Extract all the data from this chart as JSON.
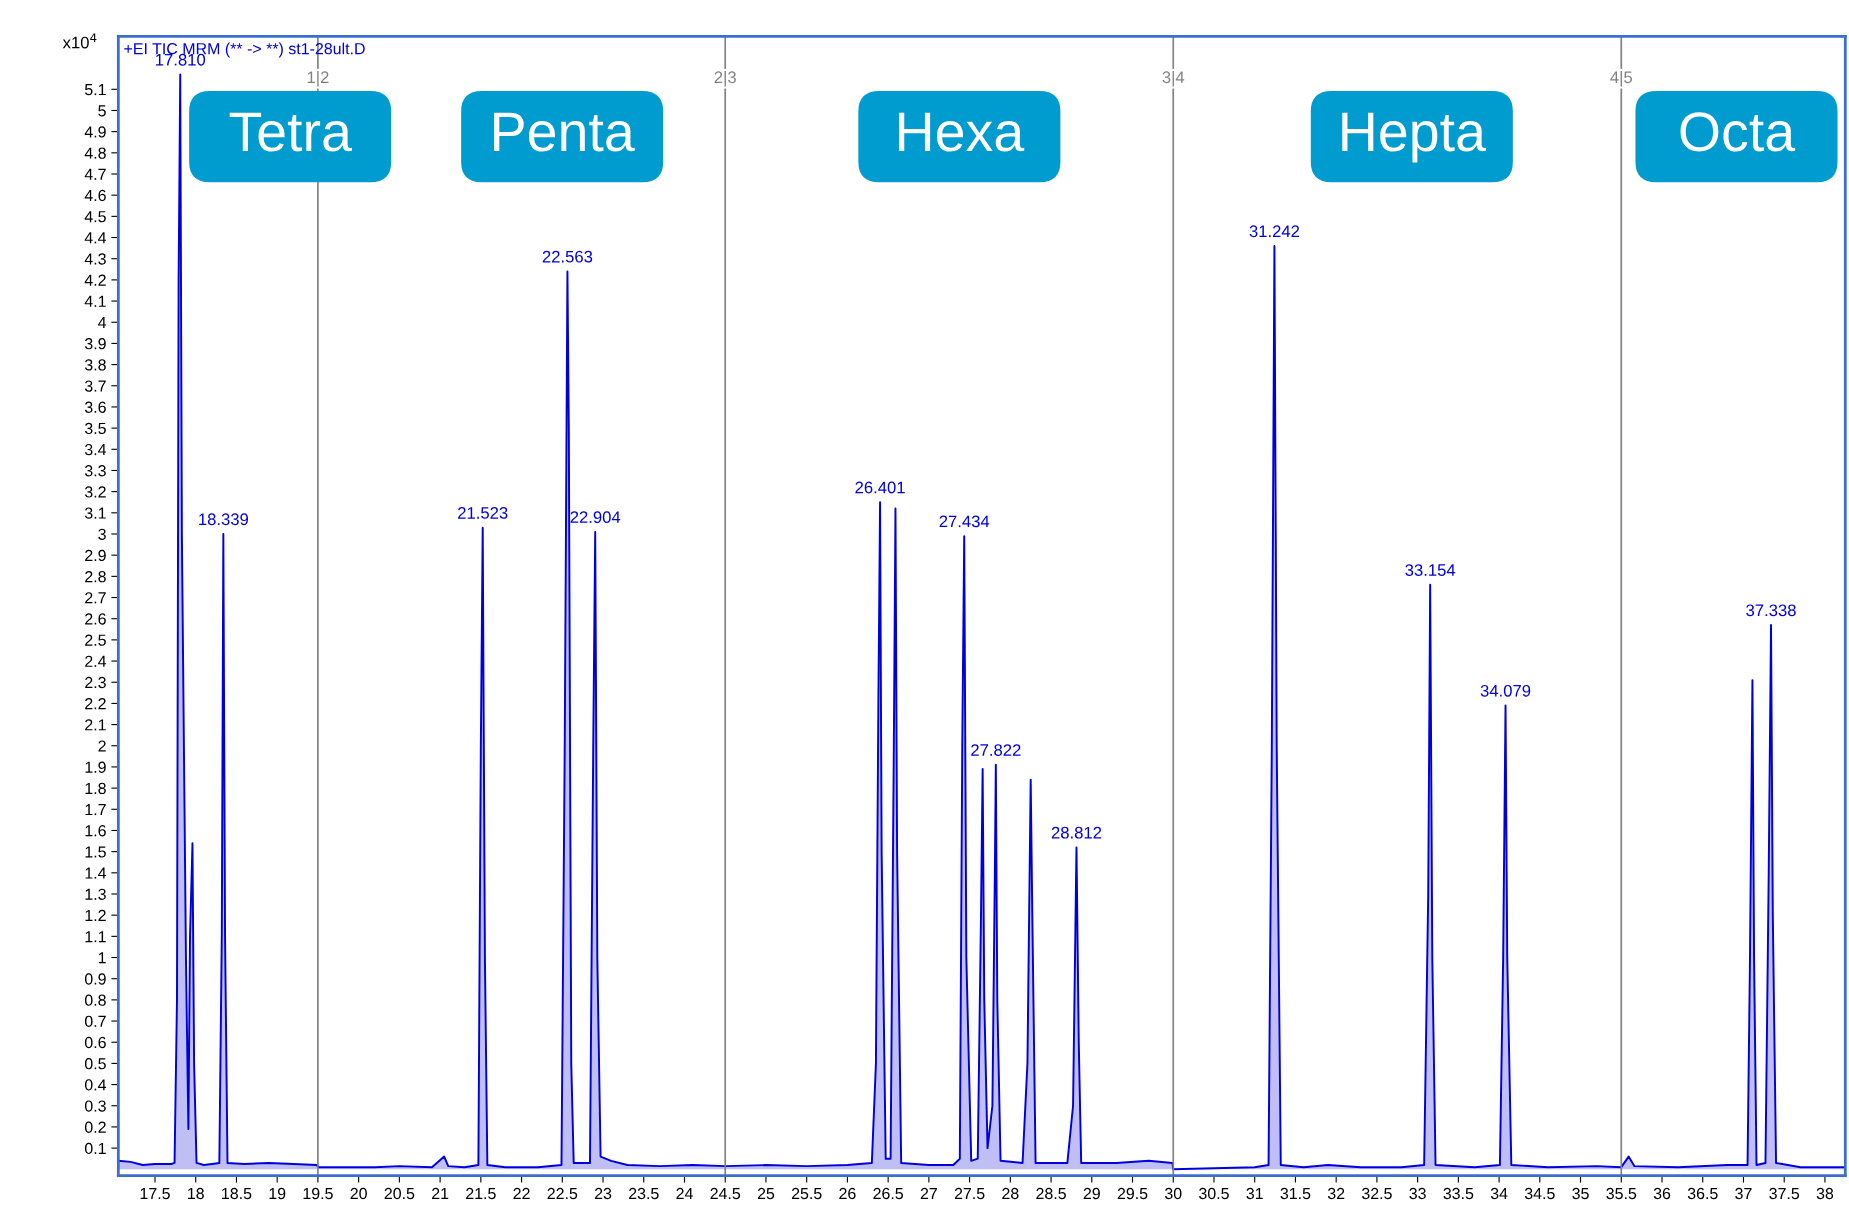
{
  "chart_data": {
    "type": "area",
    "title": "+EI TIC MRM (** -> **) st1-28ult.D",
    "ylabel": "x10$^{4}$",
    "x": [
      17.05,
      17.2,
      17.35,
      17.5,
      17.7,
      17.74,
      17.77,
      17.79,
      17.81,
      17.83,
      17.88,
      17.91,
      17.93,
      17.96,
      17.98,
      18.01,
      18.1,
      18.2,
      18.29,
      18.32,
      18.339,
      18.36,
      18.39,
      18.6,
      18.9,
      19.2,
      19.49,
      19.5,
      19.8,
      20.2,
      20.5,
      20.9,
      21.05,
      21.1,
      21.3,
      21.47,
      21.5,
      21.523,
      21.55,
      21.58,
      21.8,
      22.2,
      22.49,
      22.53,
      22.563,
      22.58,
      22.61,
      22.64,
      22.84,
      22.88,
      22.904,
      22.93,
      22.97,
      23.1,
      23.3,
      23.7,
      24.1,
      24.5,
      25.0,
      25.5,
      26.0,
      26.3,
      26.35,
      26.38,
      26.401,
      26.42,
      26.47,
      26.53,
      26.57,
      26.59,
      26.61,
      26.66,
      27.0,
      27.3,
      27.38,
      27.41,
      27.434,
      27.46,
      27.52,
      27.6,
      27.64,
      27.66,
      27.68,
      27.72,
      27.78,
      27.81,
      27.822,
      27.84,
      27.88,
      28.15,
      28.21,
      28.25,
      28.27,
      28.31,
      28.7,
      28.77,
      28.812,
      28.84,
      28.87,
      29.3,
      29.7,
      29.99,
      30.0,
      30.5,
      31.0,
      31.17,
      31.21,
      31.242,
      31.27,
      31.32,
      31.6,
      31.9,
      32.3,
      32.8,
      33.08,
      33.13,
      33.154,
      33.18,
      33.22,
      33.7,
      34.01,
      34.05,
      34.079,
      34.1,
      34.15,
      34.6,
      35.2,
      35.5,
      35.59,
      35.66,
      36.2,
      36.8,
      37.05,
      37.08,
      37.11,
      37.13,
      37.16,
      37.27,
      37.31,
      37.338,
      37.36,
      37.4,
      37.7,
      38.25
    ],
    "series": [
      {
        "color": "#0000dd",
        "values": [
          0.04,
          0.035,
          0.02,
          0.025,
          0.025,
          0.03,
          0.8,
          4.2,
          5.17,
          3.0,
          1.0,
          0.19,
          1.1,
          1.54,
          0.5,
          0.03,
          0.02,
          0.025,
          0.03,
          1.1,
          3.0,
          1.1,
          0.03,
          0.025,
          0.03,
          0.025,
          0.02,
          0.01,
          0.01,
          0.01,
          0.015,
          0.01,
          0.06,
          0.015,
          0.01,
          0.02,
          2.0,
          3.03,
          1.0,
          0.02,
          0.01,
          0.01,
          0.02,
          2.0,
          4.24,
          3.5,
          0.5,
          0.03,
          0.03,
          2.0,
          3.01,
          1.0,
          0.06,
          0.04,
          0.02,
          0.015,
          0.02,
          0.015,
          0.02,
          0.015,
          0.02,
          0.03,
          0.5,
          2.2,
          3.15,
          1.5,
          0.05,
          0.05,
          2.0,
          3.12,
          1.5,
          0.03,
          0.02,
          0.02,
          0.05,
          2.0,
          2.99,
          1.0,
          0.04,
          0.05,
          1.2,
          1.89,
          0.8,
          0.1,
          0.3,
          1.4,
          1.91,
          0.8,
          0.04,
          0.03,
          0.5,
          1.84,
          1.2,
          0.03,
          0.03,
          0.3,
          1.52,
          0.6,
          0.03,
          0.03,
          0.04,
          0.03,
          0.0,
          0.005,
          0.01,
          0.02,
          2.0,
          4.36,
          2.0,
          0.02,
          0.01,
          0.02,
          0.01,
          0.01,
          0.02,
          1.3,
          2.76,
          1.0,
          0.02,
          0.01,
          0.02,
          1.0,
          2.19,
          1.0,
          0.02,
          0.01,
          0.015,
          0.01,
          0.06,
          0.015,
          0.01,
          0.02,
          0.02,
          1.0,
          2.31,
          1.0,
          0.02,
          0.03,
          1.4,
          2.57,
          1.2,
          0.03,
          0.01,
          0.01
        ]
      }
    ],
    "xlim": [
      17.05,
      38.25
    ],
    "xticks": [
      17.5,
      18,
      18.5,
      19,
      19.5,
      20,
      20.5,
      21,
      21.5,
      22,
      22.5,
      23,
      23.5,
      24,
      24.5,
      25,
      25.5,
      26,
      26.5,
      27,
      27.5,
      28,
      28.5,
      29,
      29.5,
      30,
      30.5,
      31,
      31.5,
      32,
      32.5,
      33,
      33.5,
      34,
      34.5,
      35,
      35.5,
      36,
      36.5,
      37,
      37.5,
      38
    ],
    "ylim": [
      -0.03,
      5.35
    ],
    "yticks": [
      0.1,
      0.2,
      0.3,
      0.4,
      0.5,
      0.6,
      0.7,
      0.8,
      0.9,
      1,
      1.1,
      1.2,
      1.3,
      1.4,
      1.5,
      1.6,
      1.7,
      1.8,
      1.9,
      2,
      2.1,
      2.2,
      2.3,
      2.4,
      2.5,
      2.6,
      2.7,
      2.8,
      2.9,
      3,
      3.1,
      3.2,
      3.3,
      3.4,
      3.5,
      3.6,
      3.7,
      3.8,
      3.9,
      4,
      4.1,
      4.2,
      4.3,
      4.4,
      4.5,
      4.6,
      4.7,
      4.8,
      4.9,
      5,
      5.1
    ],
    "ref_lines": [
      {
        "axis": "x",
        "value": 19.5,
        "color": "#808080"
      },
      {
        "axis": "x",
        "value": 24.5,
        "color": "#808080"
      },
      {
        "axis": "x",
        "value": 30,
        "color": "#808080"
      },
      {
        "axis": "x",
        "value": 35.5,
        "color": "#808080"
      }
    ],
    "annotations": [
      "Tetra",
      "Penta",
      "Hexa",
      "Hepta",
      "Octa",
      {
        "text": "1|2",
        "x": 19.5,
        "y": 5.15
      },
      {
        "text": "2|3",
        "x": 24.5,
        "y": 5.15
      },
      {
        "text": "3|4",
        "x": 30,
        "y": 5.15
      },
      {
        "text": "4|5",
        "x": 35.5,
        "y": 5.15
      },
      {
        "text": "17.810",
        "x": 17.81,
        "y": 5.17
      },
      {
        "text": "18.339",
        "x": 18.339,
        "y": 3.0
      },
      {
        "text": "21.523",
        "x": 21.523,
        "y": 3.03
      },
      {
        "text": "22.563",
        "x": 22.563,
        "y": 4.24
      },
      {
        "text": "22.904",
        "x": 22.904,
        "y": 3.01
      },
      {
        "text": "26.401",
        "x": 26.401,
        "y": 3.15
      },
      {
        "text": "27.434",
        "x": 27.434,
        "y": 2.99
      },
      {
        "text": "27.822",
        "x": 27.822,
        "y": 1.91
      },
      {
        "text": "28.812",
        "x": 28.812,
        "y": 1.52
      },
      {
        "text": "31.242",
        "x": 31.242,
        "y": 4.36
      },
      {
        "text": "33.154",
        "x": 33.154,
        "y": 2.76
      },
      {
        "text": "34.079",
        "x": 34.079,
        "y": 2.19
      },
      {
        "text": "37.338",
        "x": 37.338,
        "y": 2.57
      }
    ],
    "grid": false
  }
}
